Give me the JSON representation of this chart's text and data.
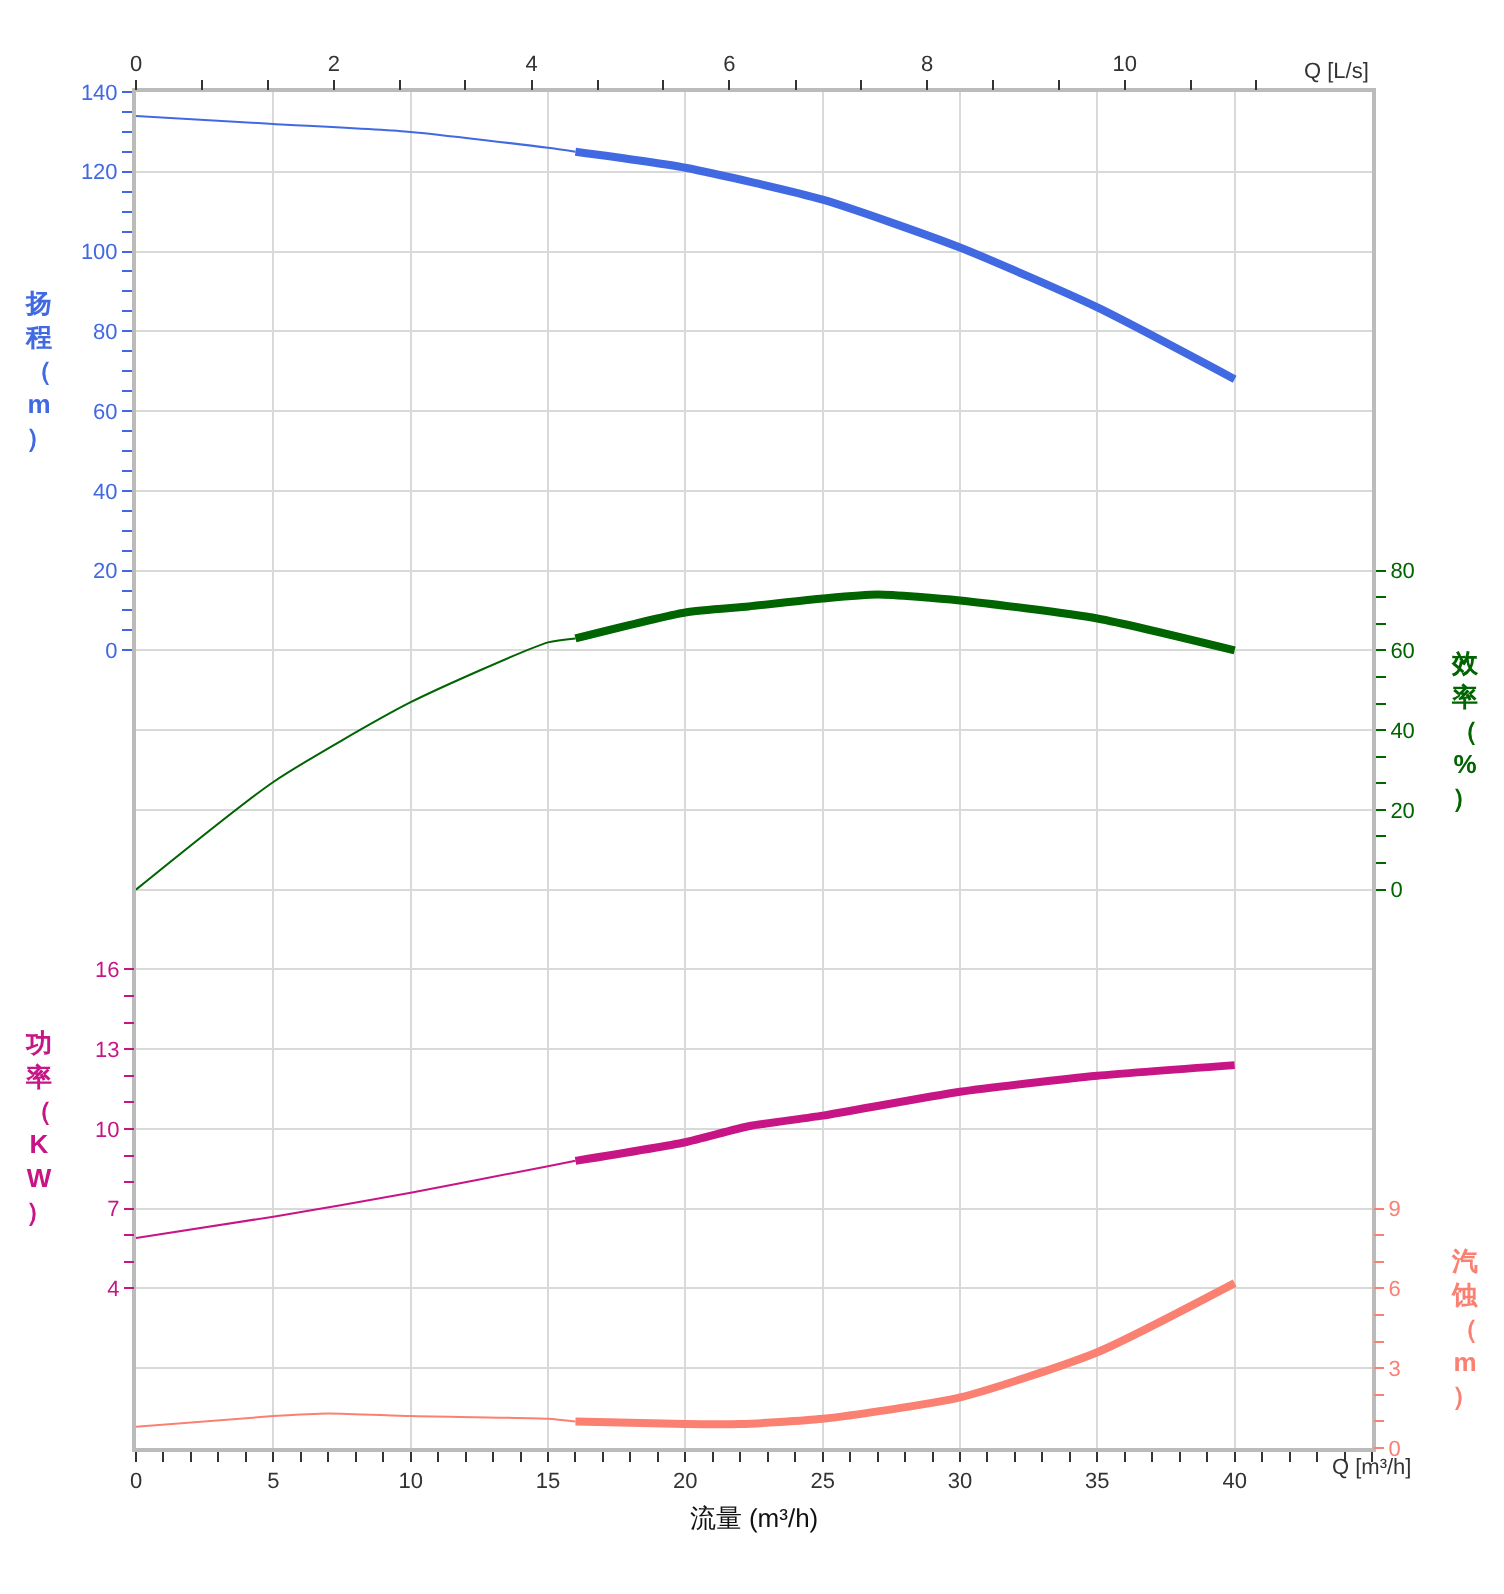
{
  "chart_data": [
    {
      "type": "line",
      "xlabel": "流量 (m³/h)",
      "x2label": "Q [L/s]",
      "ylabel": "扬程（m）",
      "y2label": "效率（%）",
      "y3label": "功率（KW）",
      "annotations": [
        "Q [m³/h]"
      ],
      "xlim": [
        0,
        45
      ],
      "xticks": [
        0,
        {
          "value": 1,
          "label": null
        },
        {
          "value": 2,
          "label": null
        },
        {
          "value": 3,
          "label": null
        },
        {
          "value": 4,
          "label": null
        },
        5,
        {
          "value": 6,
          "label": null
        },
        {
          "value": 7,
          "label": null
        },
        {
          "value": 8,
          "label": null
        },
        {
          "value": 9,
          "label": null
        },
        10,
        {
          "value": 11,
          "label": null
        },
        {
          "value": 12,
          "label": null
        },
        {
          "value": 13,
          "label": null
        },
        {
          "value": 14,
          "label": null
        },
        15,
        {
          "value": 16,
          "label": null
        },
        {
          "value": 17,
          "label": null
        },
        {
          "value": 18,
          "label": null
        },
        {
          "value": 19,
          "label": null
        },
        20,
        {
          "value": 21,
          "label": null
        },
        {
          "value": 22,
          "label": null
        },
        {
          "value": 23,
          "label": null
        },
        {
          "value": 24,
          "label": null
        },
        25,
        {
          "value": 26,
          "label": null
        },
        {
          "value": 27,
          "label": null
        },
        {
          "value": 28,
          "label": null
        },
        {
          "value": 29,
          "label": null
        },
        30,
        {
          "value": 31,
          "label": null
        },
        {
          "value": 32,
          "label": null
        },
        {
          "value": 33,
          "label": null
        },
        {
          "value": 34,
          "label": null
        },
        35,
        {
          "value": 36,
          "label": null
        },
        {
          "value": 37,
          "label": null
        },
        {
          "value": 38,
          "label": null
        },
        {
          "value": 39,
          "label": null
        },
        40,
        {
          "value": 41,
          "label": null
        },
        {
          "value": 42,
          "label": null
        },
        {
          "value": 43,
          "label": null
        },
        {
          "value": 44,
          "label": null
        },
        {
          "value": 45,
          "label": null
        }
      ],
      "x2lim": [
        0,
        12.5
      ],
      "x2ticks": [
        0,
        {
          "value": 0.67,
          "label": null
        },
        {
          "value": 1.33,
          "label": null
        },
        2,
        {
          "value": 2.67,
          "label": null
        },
        {
          "value": 3.33,
          "label": null
        },
        4,
        {
          "value": 4.67,
          "label": null
        },
        {
          "value": 5.33,
          "label": null
        },
        6,
        {
          "value": 6.67,
          "label": null
        },
        {
          "value": 7.33,
          "label": null
        },
        8,
        {
          "value": 8.67,
          "label": null
        },
        {
          "value": 9.33,
          "label": null
        },
        10,
        {
          "value": 10.67,
          "label": null
        },
        {
          "value": 11.33,
          "label": null
        }
      ],
      "ylim": [
        -200,
        140
      ],
      "yticks": [
        0,
        {
          "value": 5,
          "label": null
        },
        {
          "value": 10,
          "label": null
        },
        {
          "value": 15,
          "label": null
        },
        20,
        {
          "value": 25,
          "label": null
        },
        {
          "value": 30,
          "label": null
        },
        {
          "value": 35,
          "label": null
        },
        40,
        {
          "value": 45,
          "label": null
        },
        {
          "value": 50,
          "label": null
        },
        {
          "value": 55,
          "label": null
        },
        60,
        {
          "value": 65,
          "label": null
        },
        {
          "value": 70,
          "label": null
        },
        {
          "value": 75,
          "label": null
        },
        80,
        {
          "value": 85,
          "label": null
        },
        {
          "value": 90,
          "label": null
        },
        {
          "value": 95,
          "label": null
        },
        100,
        {
          "value": 105,
          "label": null
        },
        {
          "value": 110,
          "label": null
        },
        {
          "value": 115,
          "label": null
        },
        120,
        {
          "value": 125,
          "label": null
        },
        {
          "value": 130,
          "label": null
        },
        {
          "value": 135,
          "label": null
        },
        140
      ],
      "y2lim": [
        -140,
        200
      ],
      "y2ticks": [
        0,
        {
          "value": 6.67,
          "label": null
        },
        {
          "value": 13.33,
          "label": null
        },
        20,
        {
          "value": 26.67,
          "label": null
        },
        {
          "value": 33.33,
          "label": null
        },
        40,
        {
          "value": 46.67,
          "label": null
        },
        {
          "value": 53.33,
          "label": null
        },
        60,
        {
          "value": 66.67,
          "label": null
        },
        {
          "value": 73.33,
          "label": null
        },
        80
      ],
      "y3lim": [
        -2,
        49
      ],
      "y3ticks": [
        4,
        {
          "value": 5,
          "label": null
        },
        {
          "value": 6,
          "label": null
        },
        7,
        {
          "value": 8,
          "label": null
        },
        {
          "value": 9,
          "label": null
        },
        10,
        {
          "value": 11,
          "label": null
        },
        {
          "value": 12,
          "label": null
        },
        13,
        {
          "value": 14,
          "label": null
        },
        {
          "value": 15,
          "label": null
        },
        16
      ],
      "grid": true,
      "marker": "none",
      "line_style": "solid",
      "series": [
        {
          "axis": "y",
          "color": "#4169e1",
          "x": [
            0,
            5,
            10,
            15,
            16
          ],
          "values": [
            134,
            132,
            130,
            126,
            125
          ]
        },
        {
          "axis": "y",
          "color": "#4169e1",
          "x": [
            16,
            20,
            25,
            30,
            35,
            40
          ],
          "values": [
            125,
            121,
            113,
            101,
            86,
            68
          ]
        },
        {
          "axis": "y2",
          "color": "#006400",
          "x": [
            0,
            5,
            10,
            15,
            16
          ],
          "values": [
            0,
            27,
            47,
            62,
            63
          ]
        },
        {
          "axis": "y2",
          "color": "#006400",
          "x": [
            16,
            20,
            22.3,
            25,
            27,
            30,
            35,
            40
          ],
          "values": [
            63,
            69.5,
            71,
            73,
            74,
            72.5,
            68,
            60
          ]
        },
        {
          "axis": "y3",
          "color": "#c71585",
          "x": [
            0,
            5,
            10,
            15,
            16
          ],
          "values": [
            5.9,
            6.7,
            7.6,
            8.6,
            8.8
          ]
        },
        {
          "axis": "y3",
          "color": "#c71585",
          "x": [
            16,
            20,
            22.3,
            25,
            30,
            35,
            40
          ],
          "values": [
            8.8,
            9.5,
            10.1,
            10.5,
            11.4,
            12.0,
            12.4
          ]
        }
      ]
    },
    {
      "type": "line",
      "ylabel": "汽蚀（m）",
      "tick_labels": "y",
      "xlim": [
        0,
        45
      ],
      "ylim": [
        0,
        51
      ],
      "yticks": [
        0,
        {
          "value": 1,
          "label": null
        },
        {
          "value": 2,
          "label": null
        },
        3,
        {
          "value": 4,
          "label": null
        },
        {
          "value": 5,
          "label": null
        },
        6,
        {
          "value": 7,
          "label": null
        },
        {
          "value": 8,
          "label": null
        },
        9
      ],
      "marker": "none",
      "line_style": "solid",
      "series": [
        {
          "color": "#fa8072",
          "x": [
            0,
            5,
            7,
            10,
            15,
            16
          ],
          "values": [
            0.8,
            1.2,
            1.3,
            1.2,
            1.1,
            1.0
          ]
        },
        {
          "color": "#fa8072",
          "x": [
            16,
            20,
            22,
            25,
            30,
            35,
            40
          ],
          "values": [
            1.0,
            0.9,
            0.9,
            1.1,
            1.9,
            3.6,
            6.2
          ]
        }
      ]
    }
  ]
}
